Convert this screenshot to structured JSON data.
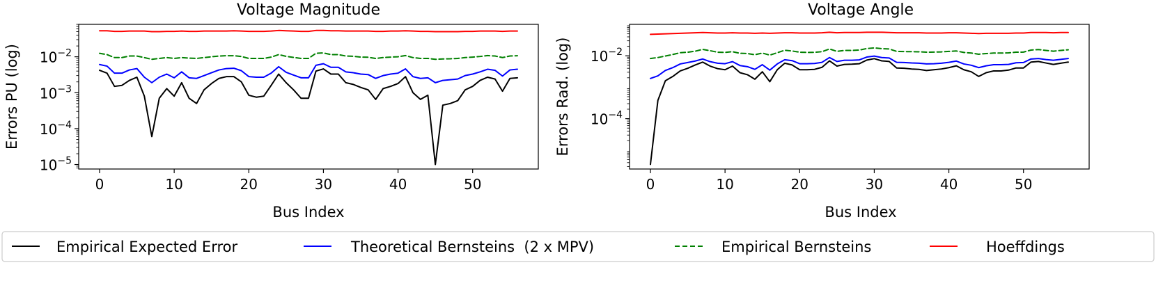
{
  "chart_data": [
    {
      "type": "line",
      "title": "Voltage Magnitude",
      "xlabel": "Bus Index",
      "ylabel": "Errors PU (log)",
      "yscale": "log",
      "xlim": [
        -2.8,
        58.8
      ],
      "ylim": [
        7.5e-06,
        0.08
      ],
      "xticks": [
        0,
        10,
        20,
        30,
        40,
        50
      ],
      "yticks": [
        {
          "value": 1e-05,
          "base": "10",
          "exp": "−5"
        },
        {
          "value": 0.0001,
          "base": "10",
          "exp": "−4"
        },
        {
          "value": 0.001,
          "base": "10",
          "exp": "−3"
        },
        {
          "value": 0.01,
          "base": "10",
          "exp": "−2"
        }
      ],
      "x": [
        0,
        1,
        2,
        3,
        4,
        5,
        6,
        7,
        8,
        9,
        10,
        11,
        12,
        13,
        14,
        15,
        16,
        17,
        18,
        19,
        20,
        21,
        22,
        23,
        24,
        25,
        26,
        27,
        28,
        29,
        30,
        31,
        32,
        33,
        34,
        35,
        36,
        37,
        38,
        39,
        40,
        41,
        42,
        43,
        44,
        45,
        46,
        47,
        48,
        49,
        50,
        51,
        52,
        53,
        54,
        55,
        56
      ],
      "series": [
        {
          "name": "Empirical Expected Error",
          "color": "#000000",
          "dash": "solid",
          "values": [
            0.0042,
            0.0035,
            0.0015,
            0.0016,
            0.0022,
            0.0027,
            0.0008,
            6e-05,
            0.0007,
            0.0013,
            0.0008,
            0.0019,
            0.0007,
            0.0005,
            0.0012,
            0.0018,
            0.0025,
            0.0028,
            0.0028,
            0.002,
            0.00085,
            0.00075,
            0.0008,
            0.0016,
            0.0033,
            0.0019,
            0.0012,
            0.0007,
            0.0007,
            0.004,
            0.0046,
            0.0033,
            0.0033,
            0.0019,
            0.0017,
            0.0014,
            0.0012,
            0.00065,
            0.0013,
            0.0015,
            0.0018,
            0.0028,
            0.001,
            0.00065,
            0.00085,
            1e-05,
            0.00045,
            0.0005,
            0.0006,
            0.0012,
            0.0015,
            0.0022,
            0.0027,
            0.0024,
            0.0011,
            0.0025,
            0.0026
          ]
        },
        {
          "name": "Theoretical Bernsteins  (2 x MPV)",
          "color": "#0000ff",
          "dash": "solid",
          "values": [
            0.0061,
            0.0055,
            0.0035,
            0.0035,
            0.0043,
            0.0047,
            0.0027,
            0.0019,
            0.0027,
            0.0033,
            0.0026,
            0.0038,
            0.0026,
            0.0025,
            0.003,
            0.0036,
            0.0043,
            0.0047,
            0.0048,
            0.0041,
            0.0028,
            0.0027,
            0.0027,
            0.0035,
            0.0053,
            0.0037,
            0.0031,
            0.0026,
            0.0026,
            0.0058,
            0.0064,
            0.0051,
            0.0051,
            0.0038,
            0.0036,
            0.0033,
            0.0032,
            0.0025,
            0.003,
            0.0033,
            0.0035,
            0.0046,
            0.0028,
            0.0025,
            0.0026,
            0.0019,
            0.0022,
            0.0023,
            0.0024,
            0.003,
            0.0033,
            0.0038,
            0.0045,
            0.0042,
            0.0029,
            0.0043,
            0.0045
          ]
        },
        {
          "name": "Empirical Bernsteins",
          "color": "#008000",
          "dash": "dashed",
          "values": [
            0.0125,
            0.0115,
            0.0095,
            0.0095,
            0.0105,
            0.0105,
            0.0095,
            0.0085,
            0.009,
            0.0095,
            0.009,
            0.0095,
            0.0092,
            0.009,
            0.0095,
            0.01,
            0.0105,
            0.0107,
            0.0107,
            0.0102,
            0.009,
            0.009,
            0.009,
            0.0098,
            0.0115,
            0.0103,
            0.0096,
            0.009,
            0.009,
            0.0125,
            0.0128,
            0.0115,
            0.0115,
            0.0105,
            0.0103,
            0.0098,
            0.0097,
            0.009,
            0.0095,
            0.0098,
            0.01,
            0.0108,
            0.0095,
            0.009,
            0.009,
            0.0085,
            0.0087,
            0.0088,
            0.009,
            0.0095,
            0.0098,
            0.0102,
            0.0108,
            0.0105,
            0.0095,
            0.0105,
            0.0107
          ]
        },
        {
          "name": "Hoeffdings",
          "color": "#ff0000",
          "dash": "solid",
          "values": [
            0.053,
            0.053,
            0.051,
            0.051,
            0.052,
            0.052,
            0.052,
            0.05,
            0.05,
            0.051,
            0.051,
            0.052,
            0.051,
            0.051,
            0.052,
            0.052,
            0.052,
            0.052,
            0.053,
            0.052,
            0.051,
            0.051,
            0.051,
            0.052,
            0.054,
            0.053,
            0.052,
            0.051,
            0.051,
            0.054,
            0.054,
            0.053,
            0.053,
            0.052,
            0.052,
            0.052,
            0.052,
            0.051,
            0.051,
            0.052,
            0.052,
            0.053,
            0.052,
            0.051,
            0.051,
            0.05,
            0.05,
            0.05,
            0.05,
            0.051,
            0.051,
            0.052,
            0.052,
            0.052,
            0.051,
            0.052,
            0.052
          ]
        }
      ]
    },
    {
      "type": "line",
      "title": "Voltage Angle",
      "xlabel": "Bus Index",
      "ylabel": "Errors Rad. (log)",
      "yscale": "log",
      "xlim": [
        -2.8,
        58.8
      ],
      "ylim": [
        2.5e-06,
        0.1
      ],
      "xticks": [
        0,
        10,
        20,
        30,
        40,
        50
      ],
      "yticks": [
        {
          "value": 0.0001,
          "base": "10",
          "exp": "−4"
        },
        {
          "value": 0.01,
          "base": "10",
          "exp": "−2"
        }
      ],
      "x": [
        0,
        1,
        2,
        3,
        4,
        5,
        6,
        7,
        8,
        9,
        10,
        11,
        12,
        13,
        14,
        15,
        16,
        17,
        18,
        19,
        20,
        21,
        22,
        23,
        24,
        25,
        26,
        27,
        28,
        29,
        30,
        31,
        32,
        33,
        34,
        35,
        36,
        37,
        38,
        39,
        40,
        41,
        42,
        43,
        44,
        45,
        46,
        47,
        48,
        49,
        50,
        51,
        52,
        53,
        54,
        55,
        56
      ],
      "series": [
        {
          "name": "Empirical Expected Error",
          "color": "#000000",
          "dash": "solid",
          "values": [
            3.5e-06,
            0.00038,
            0.0016,
            0.0022,
            0.0033,
            0.004,
            0.0051,
            0.0063,
            0.0047,
            0.0039,
            0.0036,
            0.0047,
            0.0029,
            0.0025,
            0.0018,
            0.0031,
            0.0015,
            0.0036,
            0.0058,
            0.0051,
            0.0036,
            0.0036,
            0.0037,
            0.0043,
            0.0069,
            0.0047,
            0.0053,
            0.0054,
            0.0056,
            0.0073,
            0.0081,
            0.0069,
            0.0066,
            0.0041,
            0.004,
            0.0038,
            0.0037,
            0.0034,
            0.0036,
            0.0038,
            0.0042,
            0.0048,
            0.0036,
            0.0031,
            0.0022,
            0.0029,
            0.0033,
            0.0033,
            0.0035,
            0.0041,
            0.0041,
            0.0063,
            0.0066,
            0.0059,
            0.0053,
            0.0058,
            0.0063
          ]
        },
        {
          "name": "Theoretical Bernsteins  (2 x MPV)",
          "color": "#0000ff",
          "dash": "solid",
          "values": [
            0.0019,
            0.0023,
            0.0034,
            0.0042,
            0.0055,
            0.0061,
            0.0068,
            0.0079,
            0.0065,
            0.0058,
            0.0056,
            0.0065,
            0.0049,
            0.0045,
            0.0037,
            0.0052,
            0.0035,
            0.0055,
            0.0075,
            0.007,
            0.0056,
            0.0056,
            0.0057,
            0.0062,
            0.0088,
            0.0066,
            0.0072,
            0.0072,
            0.0074,
            0.0091,
            0.0098,
            0.0088,
            0.0085,
            0.0062,
            0.0061,
            0.0059,
            0.0058,
            0.0055,
            0.0056,
            0.0058,
            0.0062,
            0.0068,
            0.0055,
            0.005,
            0.0042,
            0.0048,
            0.0052,
            0.0052,
            0.0053,
            0.006,
            0.0061,
            0.0079,
            0.0082,
            0.0076,
            0.0072,
            0.0077,
            0.0082
          ]
        },
        {
          "name": "Empirical Bernsteins",
          "color": "#008000",
          "dash": "dashed",
          "values": [
            0.0082,
            0.0088,
            0.0098,
            0.011,
            0.0125,
            0.013,
            0.014,
            0.016,
            0.0145,
            0.013,
            0.0128,
            0.0135,
            0.012,
            0.0118,
            0.0108,
            0.0122,
            0.0105,
            0.0125,
            0.015,
            0.0142,
            0.013,
            0.0128,
            0.0129,
            0.0135,
            0.0165,
            0.0138,
            0.0148,
            0.0148,
            0.0152,
            0.017,
            0.0178,
            0.0168,
            0.0165,
            0.0138,
            0.0136,
            0.0135,
            0.0134,
            0.013,
            0.0131,
            0.0133,
            0.0138,
            0.0142,
            0.0128,
            0.0122,
            0.0112,
            0.0118,
            0.0122,
            0.0122,
            0.0124,
            0.013,
            0.0131,
            0.0152,
            0.0158,
            0.0148,
            0.014,
            0.0148,
            0.0155
          ]
        },
        {
          "name": "Hoeffdings",
          "color": "#ff0000",
          "dash": "solid",
          "values": [
            0.048,
            0.049,
            0.05,
            0.051,
            0.052,
            0.053,
            0.054,
            0.055,
            0.054,
            0.053,
            0.053,
            0.054,
            0.053,
            0.053,
            0.052,
            0.053,
            0.052,
            0.053,
            0.054,
            0.054,
            0.053,
            0.053,
            0.053,
            0.054,
            0.056,
            0.054,
            0.055,
            0.055,
            0.055,
            0.056,
            0.056,
            0.056,
            0.055,
            0.054,
            0.054,
            0.054,
            0.054,
            0.053,
            0.053,
            0.053,
            0.054,
            0.054,
            0.053,
            0.052,
            0.051,
            0.052,
            0.052,
            0.052,
            0.052,
            0.053,
            0.053,
            0.055,
            0.055,
            0.055,
            0.054,
            0.055,
            0.055
          ]
        }
      ]
    }
  ],
  "legend": {
    "placement": "bottom",
    "entries": [
      {
        "label": "Empirical Expected Error",
        "color": "#000000",
        "dash": "solid"
      },
      {
        "label": "Theoretical Bernsteins  (2 x MPV)",
        "color": "#0000ff",
        "dash": "solid"
      },
      {
        "label": "Empirical Bernsteins",
        "color": "#008000",
        "dash": "dashed"
      },
      {
        "label": "Hoeffdings",
        "color": "#ff0000",
        "dash": "solid"
      }
    ]
  }
}
